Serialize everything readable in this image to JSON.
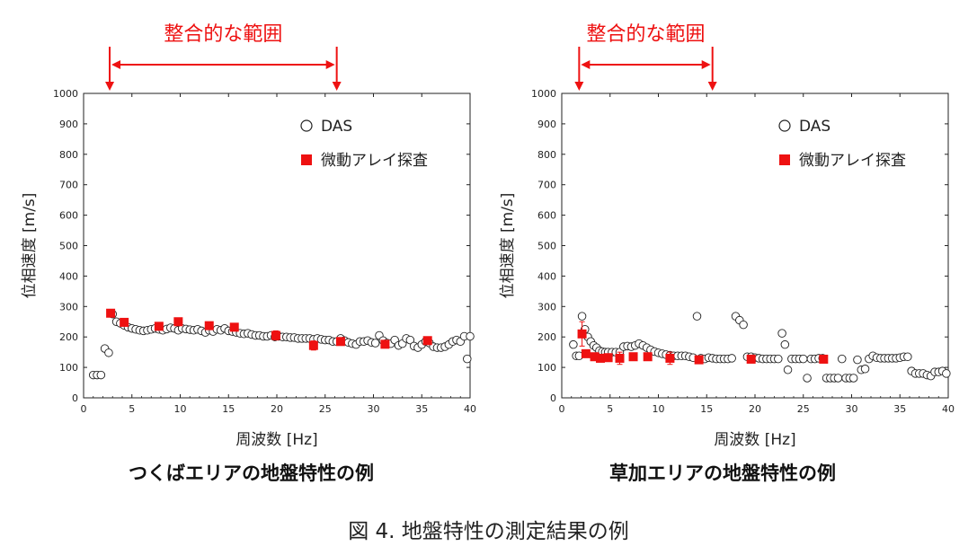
{
  "figure_caption": "図 4. 地盤特性の測定結果の例",
  "chart_data": [
    {
      "type": "scatter",
      "panel_title": "つくばエリアの地盤特性の例",
      "range_label": "整合的な範囲",
      "range_hz": [
        2.7,
        26.2
      ],
      "xlabel": "周波数 [Hz]",
      "ylabel": "位相速度 [m/s]",
      "xlim": [
        0,
        40
      ],
      "ylim": [
        0,
        1000
      ],
      "xticks": [
        "0",
        "5",
        "10",
        "15",
        "20",
        "25",
        "30",
        "35",
        "40"
      ],
      "yticks": [
        "0",
        "100",
        "200",
        "300",
        "400",
        "500",
        "600",
        "700",
        "800",
        "900",
        "1000"
      ],
      "legend": {
        "das": "DAS",
        "array": "微動アレイ探査"
      },
      "series": [
        {
          "name": "DAS",
          "marker": "open-circle",
          "color": "#222222",
          "points": [
            [
              1.0,
              75
            ],
            [
              1.4,
              75
            ],
            [
              1.8,
              75
            ],
            [
              2.2,
              162
            ],
            [
              2.6,
              148
            ],
            [
              3.0,
              275
            ],
            [
              3.4,
              250
            ],
            [
              3.8,
              245
            ],
            [
              4.2,
              238
            ],
            [
              4.6,
              232
            ],
            [
              5.0,
              228
            ],
            [
              5.4,
              225
            ],
            [
              5.8,
              222
            ],
            [
              6.2,
              220
            ],
            [
              6.6,
              222
            ],
            [
              7.0,
              225
            ],
            [
              7.4,
              228
            ],
            [
              7.8,
              225
            ],
            [
              8.2,
              222
            ],
            [
              8.6,
              226
            ],
            [
              9.0,
              230
            ],
            [
              9.4,
              228
            ],
            [
              9.8,
              222
            ],
            [
              10.2,
              228
            ],
            [
              10.6,
              226
            ],
            [
              11.0,
              224
            ],
            [
              11.4,
              222
            ],
            [
              11.8,
              225
            ],
            [
              12.2,
              220
            ],
            [
              12.6,
              215
            ],
            [
              13.0,
              222
            ],
            [
              13.4,
              218
            ],
            [
              13.8,
              225
            ],
            [
              14.2,
              222
            ],
            [
              14.6,
              228
            ],
            [
              15.0,
              220
            ],
            [
              15.4,
              218
            ],
            [
              15.8,
              215
            ],
            [
              16.2,
              212
            ],
            [
              16.6,
              210
            ],
            [
              17.0,
              212
            ],
            [
              17.4,
              208
            ],
            [
              17.8,
              205
            ],
            [
              18.2,
              205
            ],
            [
              18.6,
              202
            ],
            [
              19.0,
              202
            ],
            [
              19.4,
              205
            ],
            [
              19.8,
              200
            ],
            [
              20.2,
              202
            ],
            [
              20.6,
              200
            ],
            [
              21.0,
              200
            ],
            [
              21.4,
              198
            ],
            [
              21.8,
              198
            ],
            [
              22.2,
              195
            ],
            [
              22.6,
              195
            ],
            [
              23.0,
              195
            ],
            [
              23.4,
              195
            ],
            [
              23.8,
              192
            ],
            [
              24.2,
              195
            ],
            [
              24.6,
              192
            ],
            [
              25.0,
              190
            ],
            [
              25.4,
              190
            ],
            [
              25.8,
              185
            ],
            [
              26.2,
              185
            ],
            [
              26.6,
              195
            ],
            [
              27.0,
              188
            ],
            [
              27.4,
              182
            ],
            [
              27.8,
              178
            ],
            [
              28.2,
              175
            ],
            [
              28.6,
              185
            ],
            [
              29.0,
              185
            ],
            [
              29.4,
              188
            ],
            [
              29.8,
              182
            ],
            [
              30.2,
              180
            ],
            [
              30.6,
              205
            ],
            [
              31.0,
              188
            ],
            [
              31.4,
              180
            ],
            [
              31.8,
              178
            ],
            [
              32.2,
              190
            ],
            [
              32.6,
              172
            ],
            [
              33.0,
              178
            ],
            [
              33.4,
              195
            ],
            [
              33.8,
              190
            ],
            [
              34.2,
              170
            ],
            [
              34.6,
              165
            ],
            [
              35.0,
              175
            ],
            [
              35.4,
              185
            ],
            [
              35.8,
              180
            ],
            [
              36.2,
              168
            ],
            [
              36.6,
              165
            ],
            [
              37.0,
              165
            ],
            [
              37.4,
              168
            ],
            [
              37.8,
              175
            ],
            [
              38.2,
              185
            ],
            [
              38.6,
              190
            ],
            [
              39.0,
              185
            ],
            [
              39.4,
              202
            ],
            [
              39.7,
              128
            ],
            [
              40.0,
              202
            ]
          ]
        },
        {
          "name": "微動アレイ探査",
          "marker": "filled-square",
          "color": "#ee1111",
          "points": [
            [
              2.8,
              278,
              5
            ],
            [
              4.2,
              248,
              5
            ],
            [
              7.8,
              235,
              5
            ],
            [
              9.8,
              250,
              5
            ],
            [
              13.0,
              237,
              5
            ],
            [
              15.6,
              232,
              5
            ],
            [
              19.9,
              205,
              15
            ],
            [
              23.8,
              172,
              15
            ],
            [
              26.6,
              185,
              10
            ],
            [
              31.2,
              176,
              10
            ],
            [
              35.6,
              188,
              10
            ]
          ]
        }
      ]
    },
    {
      "type": "scatter",
      "panel_title": "草加エリアの地盤特性の例",
      "range_label": "整合的な範囲",
      "range_hz": [
        1.8,
        15.6
      ],
      "xlabel": "周波数 [Hz]",
      "ylabel": "位相速度 [m/s]",
      "xlim": [
        0,
        40
      ],
      "ylim": [
        0,
        1000
      ],
      "xticks": [
        "0",
        "5",
        "10",
        "15",
        "20",
        "25",
        "30",
        "35",
        "40"
      ],
      "yticks": [
        "0",
        "100",
        "200",
        "300",
        "400",
        "500",
        "600",
        "700",
        "800",
        "900",
        "1000"
      ],
      "legend": {
        "das": "DAS",
        "array": "微動アレイ探査"
      },
      "series": [
        {
          "name": "DAS",
          "marker": "open-circle",
          "color": "#222222",
          "points": [
            [
              1.2,
              175
            ],
            [
              1.5,
              138
            ],
            [
              1.8,
              138
            ],
            [
              2.1,
              268
            ],
            [
              2.4,
              225
            ],
            [
              2.7,
              200
            ],
            [
              3.0,
              185
            ],
            [
              3.3,
              172
            ],
            [
              3.6,
              165
            ],
            [
              3.9,
              155
            ],
            [
              4.2,
              152
            ],
            [
              4.5,
              150
            ],
            [
              4.8,
              150
            ],
            [
              5.2,
              150
            ],
            [
              5.6,
              150
            ],
            [
              6.0,
              150
            ],
            [
              6.4,
              168
            ],
            [
              6.8,
              170
            ],
            [
              7.2,
              168
            ],
            [
              7.6,
              172
            ],
            [
              8.0,
              178
            ],
            [
              8.4,
              172
            ],
            [
              8.8,
              165
            ],
            [
              9.2,
              158
            ],
            [
              9.6,
              152
            ],
            [
              10.0,
              148
            ],
            [
              10.4,
              145
            ],
            [
              10.8,
              142
            ],
            [
              11.2,
              140
            ],
            [
              11.6,
              138
            ],
            [
              12.0,
              138
            ],
            [
              12.4,
              138
            ],
            [
              12.8,
              138
            ],
            [
              13.2,
              135
            ],
            [
              13.6,
              132
            ],
            [
              14.0,
              268
            ],
            [
              14.4,
              130
            ],
            [
              14.8,
              128
            ],
            [
              15.2,
              132
            ],
            [
              15.6,
              130
            ],
            [
              16.0,
              128
            ],
            [
              16.4,
              128
            ],
            [
              16.8,
              128
            ],
            [
              17.2,
              128
            ],
            [
              17.6,
              130
            ],
            [
              18.0,
              268
            ],
            [
              18.4,
              255
            ],
            [
              18.8,
              240
            ],
            [
              19.2,
              135
            ],
            [
              19.6,
              135
            ],
            [
              20.0,
              132
            ],
            [
              20.4,
              130
            ],
            [
              20.8,
              128
            ],
            [
              21.2,
              128
            ],
            [
              21.6,
              128
            ],
            [
              22.0,
              128
            ],
            [
              22.4,
              128
            ],
            [
              22.8,
              212
            ],
            [
              23.1,
              175
            ],
            [
              23.4,
              92
            ],
            [
              23.8,
              128
            ],
            [
              24.2,
              128
            ],
            [
              24.6,
              128
            ],
            [
              25.0,
              128
            ],
            [
              25.4,
              65
            ],
            [
              25.8,
              128
            ],
            [
              26.2,
              128
            ],
            [
              26.6,
              130
            ],
            [
              27.0,
              130
            ],
            [
              27.4,
              65
            ],
            [
              27.8,
              65
            ],
            [
              28.2,
              65
            ],
            [
              28.6,
              65
            ],
            [
              29.0,
              128
            ],
            [
              29.4,
              65
            ],
            [
              29.8,
              65
            ],
            [
              30.2,
              65
            ],
            [
              30.6,
              125
            ],
            [
              31.0,
              92
            ],
            [
              31.4,
              95
            ],
            [
              31.8,
              128
            ],
            [
              32.2,
              138
            ],
            [
              32.6,
              132
            ],
            [
              33.0,
              130
            ],
            [
              33.4,
              130
            ],
            [
              33.8,
              130
            ],
            [
              34.2,
              130
            ],
            [
              34.6,
              130
            ],
            [
              35.0,
              132
            ],
            [
              35.4,
              135
            ],
            [
              35.8,
              135
            ],
            [
              36.2,
              88
            ],
            [
              36.6,
              80
            ],
            [
              37.0,
              80
            ],
            [
              37.4,
              80
            ],
            [
              37.8,
              75
            ],
            [
              38.2,
              72
            ],
            [
              38.6,
              85
            ],
            [
              39.0,
              85
            ],
            [
              39.4,
              88
            ],
            [
              39.8,
              80
            ]
          ]
        },
        {
          "name": "微動アレイ探査",
          "marker": "filled-square",
          "color": "#ee1111",
          "points": [
            [
              2.1,
              210,
              40
            ],
            [
              2.5,
              145,
              8
            ],
            [
              3.4,
              135,
              8
            ],
            [
              4.0,
              130,
              8
            ],
            [
              4.8,
              132,
              10
            ],
            [
              6.0,
              130,
              20
            ],
            [
              7.4,
              135,
              10
            ],
            [
              8.9,
              135,
              10
            ],
            [
              11.2,
              130,
              20
            ],
            [
              14.2,
              125,
              10
            ],
            [
              19.6,
              127,
              10
            ],
            [
              27.1,
              127,
              10
            ]
          ]
        }
      ]
    }
  ]
}
